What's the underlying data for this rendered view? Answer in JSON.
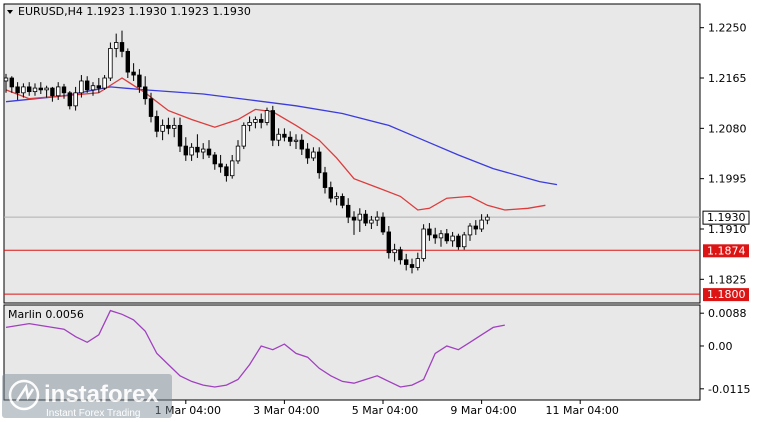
{
  "header": {
    "symbol_line": "EURUSD,H4  1.1923 1.1930 1.1923 1.1930"
  },
  "indicator": {
    "label": "Marlin 0.0056"
  },
  "branding": {
    "name": "instaforex",
    "tagline": "Instant Forex Trading"
  },
  "colors": {
    "background": "#ffffff",
    "plot_bg": "#e8e8e8",
    "candle": "#000000",
    "sma_blue": "#3c3cdc",
    "ma_red": "#dc3c3c",
    "oscillator": "#a040c0",
    "level_line": "#dc1414",
    "price_tag_bg": "#ffffff"
  },
  "chart_data": [
    {
      "type": "candlestick",
      "title": "EURUSD,H4",
      "ohlc_header": {
        "open": 1.1923,
        "high": 1.193,
        "low": 1.1923,
        "close": 1.193
      },
      "ylim": [
        1.1785,
        1.229
      ],
      "y_ticks": [
        "1.2250",
        "1.2165",
        "1.2080",
        "1.1995",
        "1.1910",
        "1.1825"
      ],
      "x_ticks": [
        "1 Mar 04:00",
        "3 Mar 04:00",
        "5 Mar 04:00",
        "9 Mar 04:00",
        "11 Mar 04:00"
      ],
      "x_tick_index": [
        31,
        48,
        65,
        82,
        99
      ],
      "current_price": "1.1930",
      "levels": [
        {
          "value": 1.1874,
          "label": "1.1874"
        },
        {
          "value": 1.18,
          "label": "1.1800"
        }
      ],
      "candles": [
        [
          1.216,
          1.2172,
          1.214,
          1.2165
        ],
        [
          1.2165,
          1.2168,
          1.214,
          1.215
        ],
        [
          1.215,
          1.2158,
          1.2128,
          1.214
        ],
        [
          1.214,
          1.2156,
          1.2132,
          1.215
        ],
        [
          1.215,
          1.2158,
          1.2135,
          1.2142
        ],
        [
          1.2142,
          1.2156,
          1.2135,
          1.2148
        ],
        [
          1.2148,
          1.2158,
          1.2138,
          1.2145
        ],
        [
          1.2145,
          1.2152,
          1.2132,
          1.2148
        ],
        [
          1.2148,
          1.215,
          1.2125,
          1.2135
        ],
        [
          1.2135,
          1.2158,
          1.2128,
          1.215
        ],
        [
          1.215,
          1.2155,
          1.213,
          1.214
        ],
        [
          1.214,
          1.2143,
          1.2112,
          1.2118
        ],
        [
          1.2118,
          1.215,
          1.211,
          1.214
        ],
        [
          1.214,
          1.217,
          1.2132,
          1.216
        ],
        [
          1.216,
          1.2168,
          1.214,
          1.2145
        ],
        [
          1.2145,
          1.2158,
          1.2135,
          1.2152
        ],
        [
          1.2152,
          1.2165,
          1.214,
          1.2148
        ],
        [
          1.2148,
          1.217,
          1.2145,
          1.2165
        ],
        [
          1.2165,
          1.2225,
          1.216,
          1.2215
        ],
        [
          1.2215,
          1.224,
          1.22,
          1.2225
        ],
        [
          1.2225,
          1.2245,
          1.22,
          1.221
        ],
        [
          1.221,
          1.2215,
          1.2165,
          1.2175
        ],
        [
          1.2175,
          1.219,
          1.216,
          1.217
        ],
        [
          1.217,
          1.218,
          1.214,
          1.215
        ],
        [
          1.215,
          1.2168,
          1.212,
          1.213
        ],
        [
          1.213,
          1.214,
          1.209,
          1.21
        ],
        [
          1.21,
          1.211,
          1.2065,
          1.2075
        ],
        [
          1.2075,
          1.2095,
          1.206,
          1.2085
        ],
        [
          1.2085,
          1.2098,
          1.207,
          1.208
        ],
        [
          1.208,
          1.2098,
          1.2065,
          1.2085
        ],
        [
          1.2085,
          1.2098,
          1.204,
          1.205
        ],
        [
          1.205,
          1.2065,
          1.2025,
          1.2035
        ],
        [
          1.2035,
          1.2055,
          1.2025,
          1.2048
        ],
        [
          1.2048,
          1.207,
          1.203,
          1.204
        ],
        [
          1.204,
          1.2055,
          1.2028,
          1.2045
        ],
        [
          1.2045,
          1.206,
          1.203,
          1.2035
        ],
        [
          1.2035,
          1.204,
          1.201,
          1.202
        ],
        [
          1.202,
          1.2035,
          1.2005,
          1.2015
        ],
        [
          1.2015,
          1.202,
          1.199,
          1.2
        ],
        [
          1.2,
          1.2035,
          1.1995,
          1.2025
        ],
        [
          1.2025,
          1.206,
          1.202,
          1.205
        ],
        [
          1.205,
          1.209,
          1.2045,
          1.2085
        ],
        [
          1.2085,
          1.21,
          1.2075,
          1.209
        ],
        [
          1.209,
          1.21,
          1.208,
          1.2095
        ],
        [
          1.2095,
          1.2105,
          1.208,
          1.209
        ],
        [
          1.209,
          1.2115,
          1.2085,
          1.211
        ],
        [
          1.211,
          1.2118,
          1.205,
          1.206
        ],
        [
          1.206,
          1.208,
          1.205,
          1.207
        ],
        [
          1.207,
          1.208,
          1.2058,
          1.2065
        ],
        [
          1.2065,
          1.2075,
          1.205,
          1.2058
        ],
        [
          1.2058,
          1.207,
          1.2045,
          1.206
        ],
        [
          1.206,
          1.207,
          1.2035,
          1.2045
        ],
        [
          1.2045,
          1.2055,
          1.202,
          1.203
        ],
        [
          1.203,
          1.2048,
          1.2025,
          1.204
        ],
        [
          1.204,
          1.2048,
          1.1995,
          1.2005
        ],
        [
          1.2005,
          1.2015,
          1.197,
          1.198
        ],
        [
          1.198,
          1.199,
          1.1955,
          1.1962
        ],
        [
          1.1962,
          1.1972,
          1.195,
          1.1965
        ],
        [
          1.1965,
          1.197,
          1.1945,
          1.195
        ],
        [
          1.195,
          1.1962,
          1.192,
          1.193
        ],
        [
          1.193,
          1.194,
          1.19,
          1.1925
        ],
        [
          1.1925,
          1.1945,
          1.1905,
          1.1935
        ],
        [
          1.1935,
          1.1942,
          1.1915,
          1.192
        ],
        [
          1.192,
          1.1932,
          1.191,
          1.1925
        ],
        [
          1.1925,
          1.194,
          1.1915,
          1.193
        ],
        [
          1.193,
          1.1938,
          1.19,
          1.1905
        ],
        [
          1.1905,
          1.1915,
          1.186,
          1.187
        ],
        [
          1.187,
          1.1885,
          1.1855,
          1.1875
        ],
        [
          1.1875,
          1.188,
          1.185,
          1.1858
        ],
        [
          1.1858,
          1.1868,
          1.184,
          1.185
        ],
        [
          1.185,
          1.186,
          1.1835,
          1.1845
        ],
        [
          1.1845,
          1.187,
          1.184,
          1.186
        ],
        [
          1.186,
          1.1918,
          1.1855,
          1.191
        ],
        [
          1.191,
          1.192,
          1.189,
          1.19
        ],
        [
          1.19,
          1.1912,
          1.1885,
          1.1895
        ],
        [
          1.1895,
          1.1908,
          1.188,
          1.1902
        ],
        [
          1.1902,
          1.191,
          1.1885,
          1.189
        ],
        [
          1.189,
          1.1905,
          1.188,
          1.1898
        ],
        [
          1.1898,
          1.1902,
          1.1875,
          1.188
        ],
        [
          1.188,
          1.1905,
          1.1875,
          1.19
        ],
        [
          1.19,
          1.192,
          1.189,
          1.1915
        ],
        [
          1.1915,
          1.1925,
          1.19,
          1.191
        ],
        [
          1.191,
          1.1935,
          1.1905,
          1.1925
        ],
        [
          1.1925,
          1.1935,
          1.1918,
          1.193
        ]
      ],
      "sma_blue": [
        [
          0,
          1.2125
        ],
        [
          10,
          1.2135
        ],
        [
          18,
          1.215
        ],
        [
          24,
          1.2145
        ],
        [
          34,
          1.2138
        ],
        [
          42,
          1.2128
        ],
        [
          50,
          1.2118
        ],
        [
          58,
          1.2105
        ],
        [
          66,
          1.2085
        ],
        [
          72,
          1.206
        ],
        [
          78,
          1.2035
        ],
        [
          84,
          1.2012
        ],
        [
          92,
          1.199
        ],
        [
          95,
          1.1985
        ]
      ],
      "ma_red": [
        [
          0,
          1.2145
        ],
        [
          4,
          1.213
        ],
        [
          10,
          1.2135
        ],
        [
          16,
          1.214
        ],
        [
          20,
          1.2165
        ],
        [
          24,
          1.214
        ],
        [
          28,
          1.211
        ],
        [
          32,
          1.2095
        ],
        [
          36,
          1.2082
        ],
        [
          40,
          1.2095
        ],
        [
          43,
          1.2112
        ],
        [
          46,
          1.2108
        ],
        [
          50,
          1.2085
        ],
        [
          54,
          1.206
        ],
        [
          57,
          1.203
        ],
        [
          60,
          1.1995
        ],
        [
          64,
          1.198
        ],
        [
          68,
          1.1965
        ],
        [
          71,
          1.1942
        ],
        [
          73,
          1.1945
        ],
        [
          76,
          1.1962
        ],
        [
          80,
          1.1965
        ],
        [
          83,
          1.195
        ],
        [
          86,
          1.1942
        ],
        [
          90,
          1.1945
        ],
        [
          93,
          1.195
        ]
      ]
    },
    {
      "type": "line",
      "title": "Marlin 0.0056",
      "ylim": [
        -0.0145,
        0.011
      ],
      "y_ticks": [
        "0.0088",
        "0.00",
        "-0.0115"
      ],
      "series": [
        {
          "values": [
            [
              0,
              0.005
            ],
            [
              4,
              0.006
            ],
            [
              8,
              0.005
            ],
            [
              10,
              0.0045
            ],
            [
              12,
              0.0025
            ],
            [
              14,
              0.001
            ],
            [
              16,
              0.003
            ],
            [
              18,
              0.0095
            ],
            [
              20,
              0.0085
            ],
            [
              22,
              0.007
            ],
            [
              24,
              0.004
            ],
            [
              26,
              -0.002
            ],
            [
              28,
              -0.005
            ],
            [
              30,
              -0.008
            ],
            [
              32,
              -0.0095
            ],
            [
              34,
              -0.0105
            ],
            [
              36,
              -0.011
            ],
            [
              38,
              -0.0105
            ],
            [
              40,
              -0.009
            ],
            [
              42,
              -0.005
            ],
            [
              44,
              0.0
            ],
            [
              46,
              -0.001
            ],
            [
              48,
              0.0005
            ],
            [
              50,
              -0.002
            ],
            [
              52,
              -0.003
            ],
            [
              54,
              -0.006
            ],
            [
              56,
              -0.008
            ],
            [
              58,
              -0.0095
            ],
            [
              60,
              -0.01
            ],
            [
              62,
              -0.009
            ],
            [
              64,
              -0.008
            ],
            [
              66,
              -0.0095
            ],
            [
              68,
              -0.011
            ],
            [
              70,
              -0.0105
            ],
            [
              72,
              -0.009
            ],
            [
              74,
              -0.002
            ],
            [
              76,
              0.0
            ],
            [
              78,
              -0.001
            ],
            [
              80,
              0.001
            ],
            [
              82,
              0.003
            ],
            [
              84,
              0.005
            ],
            [
              86,
              0.0056
            ]
          ]
        }
      ]
    }
  ]
}
